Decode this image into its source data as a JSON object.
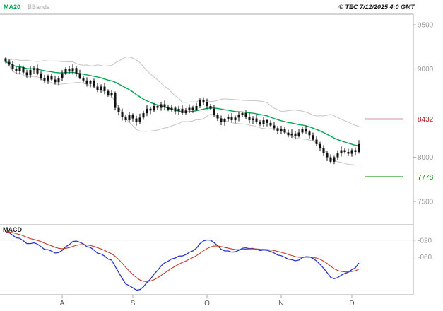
{
  "header": {
    "ma_label": "MA20",
    "bands_label": "BBands",
    "copyright": "© TEC 7/12/2025 4:0 GMT"
  },
  "macd_panel": {
    "label": "MACD"
  },
  "levels": {
    "resistance": {
      "label": "8432",
      "value": 8432,
      "color": "#b22222"
    },
    "support": {
      "label": "7778",
      "value": 7778,
      "color": "#008000"
    }
  },
  "colors": {
    "ma": "#00a651",
    "bands": "#c4c4c4",
    "candle": "#111111",
    "macd": "#2a35c8",
    "signal": "#c0392b",
    "axis_text": "#999999",
    "month_text": "#555555",
    "border": "#aaaaaa",
    "grid": "#e4e4e4"
  },
  "chart_data": {
    "type": "candlestick",
    "title": "Daily price with MA20, Bollinger Bands and MACD",
    "x_ticks": [
      {
        "label": "A",
        "index": 16
      },
      {
        "label": "S",
        "index": 36
      },
      {
        "label": "O",
        "index": 57
      },
      {
        "label": "N",
        "index": 78
      },
      {
        "label": "D",
        "index": 98
      }
    ],
    "y_axis": {
      "ticks": [
        {
          "value": 9500,
          "label": "9500"
        },
        {
          "value": 9000,
          "label": "9000"
        },
        {
          "value": 8000,
          "label": "8000"
        },
        {
          "value": 7500,
          "label": "7500"
        }
      ],
      "range": [
        7300,
        9620
      ]
    },
    "closes": [
      9080,
      9050,
      9000,
      8980,
      9020,
      8960,
      8930,
      8990,
      9010,
      8950,
      8900,
      8870,
      8920,
      8880,
      8850,
      8900,
      8950,
      9000,
      8970,
      9010,
      8950,
      8900,
      8870,
      8830,
      8860,
      8800,
      8760,
      8800,
      8750,
      8700,
      8730,
      8560,
      8510,
      8460,
      8420,
      8480,
      8440,
      8400,
      8450,
      8500,
      8550,
      8530,
      8580,
      8560,
      8600,
      8570,
      8540,
      8560,
      8520,
      8550,
      8500,
      8530,
      8560,
      8540,
      8580,
      8650,
      8620,
      8580,
      8550,
      8480,
      8440,
      8400,
      8430,
      8460,
      8420,
      8450,
      8480,
      8500,
      8460,
      8420,
      8440,
      8400,
      8380,
      8420,
      8390,
      8360,
      8330,
      8300,
      8320,
      8280,
      8250,
      8270,
      8240,
      8280,
      8320,
      8290,
      8250,
      8200,
      8150,
      8100,
      8050,
      8000,
      7950,
      8000,
      8050,
      8080,
      8060,
      8040,
      8080,
      8060,
      8150
    ],
    "indicators": {
      "ma_period": 20,
      "bands": "bollinger_2sd",
      "macd_params": [
        12,
        26,
        9
      ]
    },
    "macd_axis": {
      "ticks": [
        {
          "value": -20,
          "label": "-020"
        },
        {
          "value": -60,
          "label": "-060"
        }
      ],
      "range": [
        -145,
        15
      ]
    }
  }
}
